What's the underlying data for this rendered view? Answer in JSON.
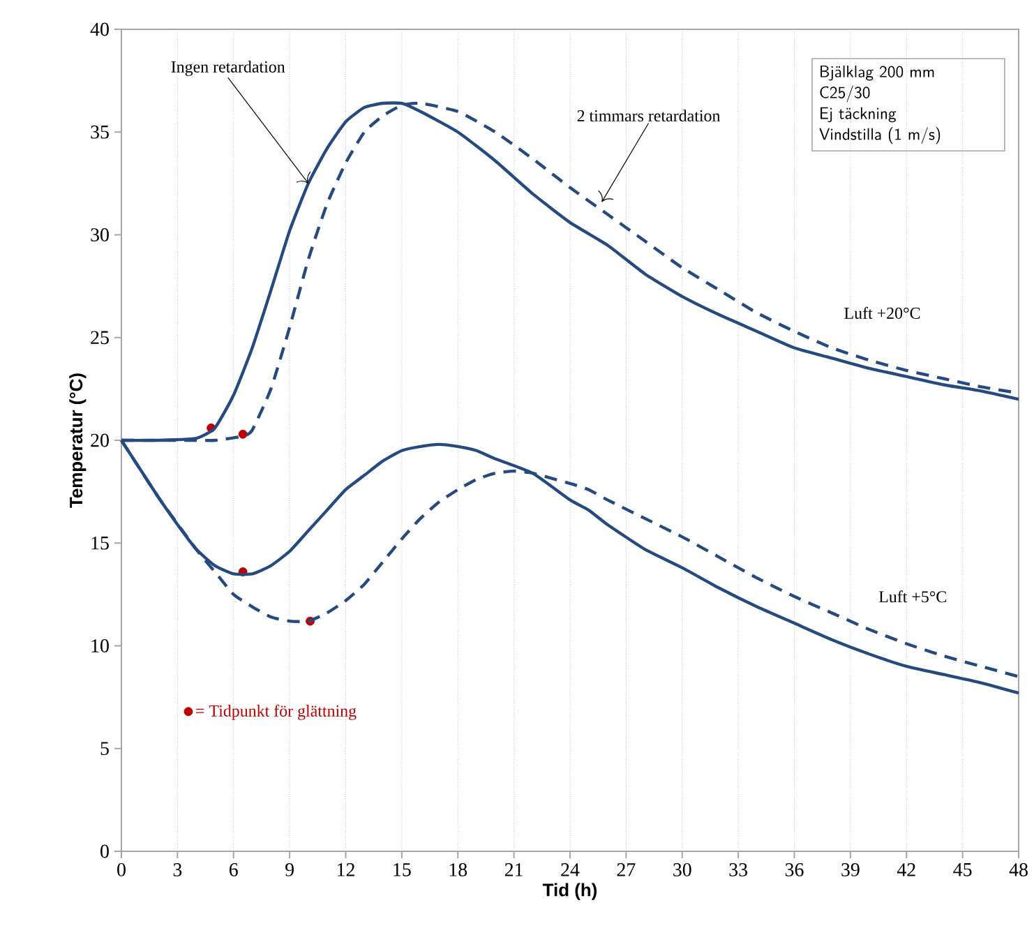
{
  "chart_data": {
    "type": "line",
    "xlabel": "Tid (h)",
    "ylabel": "Temperatur (°C)",
    "xlim": [
      0,
      48
    ],
    "ylim": [
      0,
      40
    ],
    "xticks": [
      0,
      3,
      6,
      9,
      12,
      15,
      18,
      21,
      24,
      27,
      30,
      33,
      36,
      39,
      42,
      45,
      48
    ],
    "yticks": [
      0,
      5,
      10,
      15,
      20,
      25,
      30,
      35,
      40
    ],
    "grid": "x",
    "legend": "bottom left",
    "series": [
      {
        "type": "scatter",
        "marker": "circle",
        "name": "= Tidpunkt för glättning",
        "color": "#c00000",
        "x": [
          4.8,
          6.5,
          6.5,
          10.1
        ],
        "values": [
          20.6,
          20.3,
          13.6,
          11.2
        ]
      },
      {
        "color": "#254a7f",
        "line_style": "solid",
        "x": [
          0,
          2,
          4,
          5,
          6,
          7,
          8,
          9,
          10,
          11,
          12,
          13,
          14,
          15,
          16,
          18,
          20,
          22,
          24,
          26,
          28,
          30,
          32,
          34,
          36,
          38,
          40,
          42,
          44,
          46,
          48
        ],
        "values": [
          20,
          20,
          20.1,
          20.6,
          22.2,
          24.5,
          27.3,
          30.2,
          32.5,
          34.2,
          35.5,
          36.2,
          36.4,
          36.4,
          36.0,
          35.0,
          33.6,
          32.0,
          30.6,
          29.5,
          28.1,
          27.0,
          26.1,
          25.3,
          24.5,
          24.0,
          23.5,
          23.1,
          22.7,
          22.4,
          22.0
        ]
      },
      {
        "color": "#254a7f",
        "line_style": "dashed",
        "x": [
          0,
          4,
          5,
          6.5,
          7,
          8,
          9,
          10,
          11,
          12,
          13,
          14,
          15,
          16,
          18,
          20,
          22,
          24,
          26,
          28,
          30,
          32,
          34,
          36,
          38,
          40,
          42,
          44,
          46,
          48
        ],
        "values": [
          20,
          20,
          20,
          20.2,
          20.5,
          22.5,
          25.5,
          28.8,
          31.5,
          33.5,
          35.0,
          35.8,
          36.3,
          36.4,
          36.0,
          35.0,
          33.7,
          32.3,
          31.0,
          29.7,
          28.4,
          27.3,
          26.2,
          25.3,
          24.5,
          23.9,
          23.4,
          23.0,
          22.6,
          22.3
        ]
      },
      {
        "color": "#254a7f",
        "line_style": "solid",
        "x": [
          0,
          1,
          2,
          3,
          4,
          5,
          6,
          7,
          8,
          9,
          10,
          11,
          12,
          13,
          14,
          15,
          16,
          17,
          18,
          19,
          20,
          22,
          24,
          25,
          26,
          28,
          30,
          32,
          34,
          36,
          38,
          40,
          42,
          44,
          46,
          48
        ],
        "values": [
          20,
          18.6,
          17.2,
          15.9,
          14.7,
          13.9,
          13.5,
          13.5,
          13.9,
          14.6,
          15.6,
          16.6,
          17.6,
          18.3,
          19.0,
          19.5,
          19.7,
          19.8,
          19.7,
          19.5,
          19.1,
          18.4,
          17.1,
          16.6,
          15.9,
          14.7,
          13.8,
          12.8,
          11.9,
          11.1,
          10.3,
          9.6,
          9.0,
          8.6,
          8.2,
          7.7
        ]
      },
      {
        "color": "#254a7f",
        "line_style": "dashed",
        "x": [
          0,
          2,
          4,
          5,
          6,
          7,
          8,
          9,
          10,
          11,
          12,
          13,
          14,
          15,
          16,
          17,
          18,
          19,
          20,
          21,
          22,
          24,
          25,
          26,
          28,
          30,
          32,
          34,
          36,
          38,
          40,
          42,
          44,
          46,
          48
        ],
        "values": [
          20,
          17.2,
          14.7,
          13.6,
          12.5,
          11.9,
          11.4,
          11.2,
          11.2,
          11.6,
          12.2,
          13.0,
          14.1,
          15.2,
          16.2,
          17.0,
          17.6,
          18.1,
          18.4,
          18.5,
          18.4,
          17.9,
          17.6,
          17.1,
          16.2,
          15.3,
          14.3,
          13.3,
          12.4,
          11.6,
          10.8,
          10.1,
          9.5,
          9.0,
          8.5
        ]
      }
    ],
    "annotations": [
      {
        "text": "Ingen retardation",
        "x": 10,
        "y": 32.5
      },
      {
        "text": "2 timmars retardation",
        "x": 25.7,
        "y": 31.6
      },
      "Luft +20°C",
      "Luft +5°C",
      "Bjälklag 200 mm",
      "C25/30",
      "Ej täckning",
      "Vindstilla (1 m/s)"
    ]
  }
}
